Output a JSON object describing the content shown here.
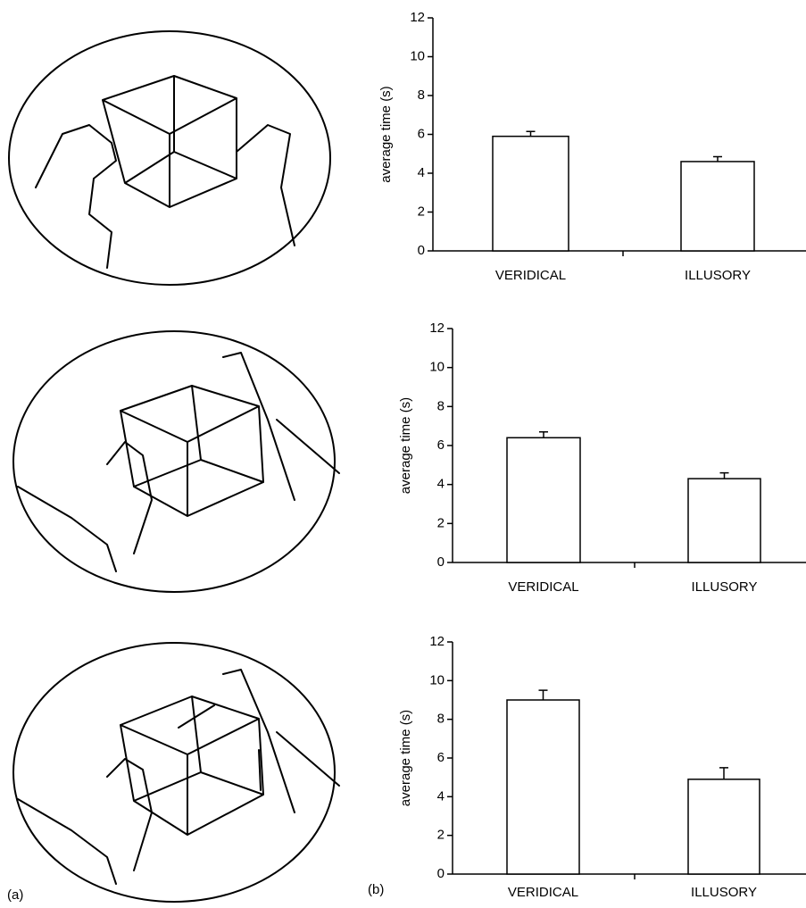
{
  "chart_data": [
    {
      "type": "bar",
      "y_label": "average time (s)",
      "categories": [
        "VERIDICAL",
        "ILLUSORY"
      ],
      "values": [
        5.9,
        4.6
      ],
      "errors": [
        0.25,
        0.25
      ],
      "color": "#ffffff",
      "ylim": [
        0,
        12
      ],
      "yticks": [
        0,
        2,
        4,
        6,
        8,
        10,
        12
      ]
    },
    {
      "type": "bar",
      "y_label": "average time (s)",
      "categories": [
        "VERIDICAL",
        "ILLUSORY"
      ],
      "values": [
        6.4,
        4.3
      ],
      "errors": [
        0.3,
        0.3
      ],
      "color": "#ffffff",
      "ylim": [
        0,
        12
      ],
      "yticks": [
        0,
        2,
        4,
        6,
        8,
        10,
        12
      ]
    },
    {
      "type": "bar",
      "y_label": "average time (s)",
      "categories": [
        "VERIDICAL",
        "ILLUSORY"
      ],
      "values": [
        9.0,
        4.9
      ],
      "errors": [
        0.5,
        0.6
      ],
      "color": "#ffffff",
      "ylim": [
        0,
        12
      ],
      "yticks": [
        0,
        2,
        4,
        6,
        8,
        10,
        12
      ]
    }
  ],
  "panel_labels": [
    "(a)",
    "(b)"
  ]
}
